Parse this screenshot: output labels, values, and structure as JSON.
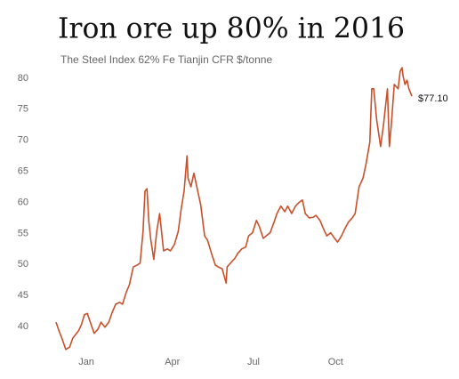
{
  "chart_data": {
    "type": "line",
    "title": "Iron ore up 80% in 2016",
    "subtitle": "The Steel Index 62% Fe Tianjin CFR $/tonne",
    "color": "#c8502a",
    "grid": false,
    "xlim": [
      0,
      364
    ],
    "xticks": [
      {
        "value": 31,
        "label": "Jan"
      },
      {
        "value": 119,
        "label": "Apr"
      },
      {
        "value": 202,
        "label": "Jul"
      },
      {
        "value": 286,
        "label": "Oct"
      }
    ],
    "ylim": [
      35.3,
      81.9
    ],
    "yticks": [
      40,
      45,
      50,
      55,
      60,
      65,
      70,
      75,
      80
    ],
    "x": [
      0,
      3,
      6,
      10,
      14,
      17,
      23,
      26,
      29,
      32,
      35,
      39,
      43,
      46,
      50,
      54,
      57,
      61,
      65,
      68,
      72,
      75,
      79,
      83,
      86,
      89,
      91,
      93,
      95,
      97,
      100,
      103,
      106,
      110,
      114,
      117,
      121,
      125,
      128,
      131,
      134,
      135,
      138,
      141,
      145,
      148,
      152,
      155,
      159,
      163,
      166,
      170,
      174,
      175,
      179,
      183,
      186,
      190,
      194,
      197,
      201,
      205,
      208,
      212,
      215,
      219,
      223,
      226,
      230,
      234,
      237,
      241,
      245,
      248,
      252,
      255,
      259,
      263,
      266,
      270,
      274,
      277,
      281,
      285,
      288,
      292,
      295,
      299,
      303,
      306,
      310,
      314,
      317,
      321,
      323,
      325,
      328,
      332,
      335,
      339,
      341,
      343,
      346,
      350,
      352,
      354,
      355,
      357,
      359,
      361,
      364
    ],
    "values": [
      40.7,
      39.3,
      38.1,
      36.3,
      36.7,
      38.1,
      39.3,
      40.3,
      41.9,
      42.1,
      40.7,
      38.9,
      39.6,
      40.7,
      39.9,
      40.7,
      42.1,
      43.6,
      43.9,
      43.6,
      45.6,
      46.7,
      49.6,
      49.9,
      50.2,
      55.3,
      61.8,
      62.2,
      56.8,
      53.9,
      50.8,
      55.3,
      58.2,
      52.2,
      52.5,
      52.2,
      53.2,
      55.3,
      58.9,
      61.8,
      67.5,
      63.9,
      62.5,
      64.7,
      61.8,
      59.6,
      54.6,
      53.9,
      51.8,
      49.9,
      49.6,
      49.3,
      47.0,
      49.6,
      50.3,
      51.0,
      51.8,
      52.5,
      52.8,
      54.6,
      55.1,
      57.1,
      56.1,
      54.2,
      54.6,
      55.1,
      56.8,
      58.2,
      59.4,
      58.5,
      59.4,
      58.2,
      59.4,
      59.9,
      60.4,
      58.2,
      57.5,
      57.6,
      57.9,
      57.1,
      55.6,
      54.6,
      55.1,
      54.2,
      53.6,
      54.6,
      55.6,
      56.8,
      57.5,
      58.2,
      62.5,
      63.9,
      66.1,
      69.7,
      78.3,
      78.3,
      73.3,
      69.0,
      72.5,
      78.3,
      69.0,
      72.5,
      79.0,
      78.3,
      81.1,
      81.7,
      80.4,
      79.0,
      79.7,
      78.3,
      77.1
    ],
    "value_labels": [
      null,
      null,
      null,
      null,
      null,
      null,
      null,
      null,
      null,
      null,
      null,
      null,
      null,
      null,
      null,
      null,
      null,
      null,
      null,
      null,
      null,
      null,
      null,
      null,
      null,
      null,
      null,
      null,
      null,
      null,
      null,
      null,
      null,
      null,
      null,
      null,
      null,
      null,
      null,
      null,
      null,
      null,
      null,
      null,
      null,
      null,
      null,
      null,
      null,
      null,
      null,
      null,
      null,
      null,
      null,
      null,
      null,
      null,
      null,
      null,
      null,
      null,
      null,
      null,
      null,
      null,
      null,
      null,
      null,
      null,
      null,
      null,
      null,
      null,
      null,
      null,
      null,
      null,
      null,
      null,
      null,
      null,
      null,
      null,
      null,
      null,
      null,
      null,
      null,
      null,
      null,
      null,
      null,
      null,
      null,
      null,
      null,
      null,
      null,
      null,
      null,
      null,
      null,
      null,
      null,
      null,
      null,
      null,
      null,
      null,
      "$77.10"
    ]
  }
}
